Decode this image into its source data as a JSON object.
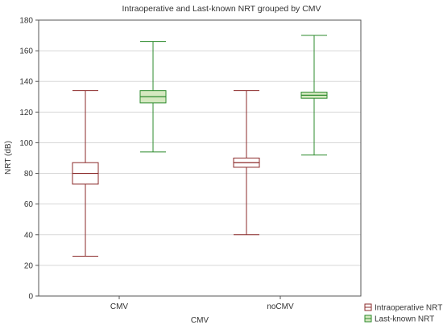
{
  "chart_data": {
    "type": "boxplot",
    "title": "Intraoperative and Last-known NRT grouped by CMV",
    "xlabel": "CMV",
    "ylabel": "NRT (dB)",
    "ylim": [
      0,
      180
    ],
    "yticks": [
      0,
      20,
      40,
      60,
      80,
      100,
      120,
      140,
      160,
      180
    ],
    "categories": [
      "CMV",
      "noCMV"
    ],
    "grid": true,
    "legend_position": "bottom-right",
    "series": [
      {
        "name": "Intraoperative NRT",
        "color": "#8b2a2a",
        "fill": "#ffffff",
        "boxes": [
          {
            "min": 26,
            "q1": 73,
            "median": 80,
            "q3": 87,
            "max": 134
          },
          {
            "min": 40,
            "q1": 84,
            "median": 87,
            "q3": 90,
            "max": 134
          }
        ]
      },
      {
        "name": "Last-known NRT",
        "color": "#2e8b2e",
        "fill": "#d5e8c0",
        "boxes": [
          {
            "min": 94,
            "q1": 126,
            "median": 130,
            "q3": 134,
            "max": 166
          },
          {
            "min": 92,
            "q1": 129,
            "median": 131,
            "q3": 133,
            "max": 170
          }
        ]
      }
    ]
  }
}
